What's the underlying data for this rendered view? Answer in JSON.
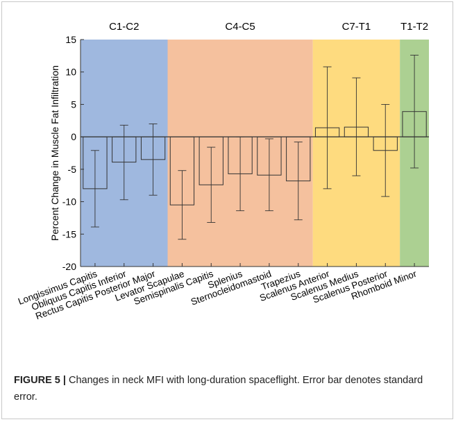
{
  "chart_data": {
    "type": "bar",
    "ylabel": "Percent Change in Muscle Fat Infiltration",
    "xlabel": "",
    "ylim": [
      -20,
      15
    ],
    "yticks": [
      15,
      10,
      5,
      0,
      -5,
      -10,
      -15,
      -20
    ],
    "grid": false,
    "categories": [
      "Longissimus Capitis",
      "Obliquus Capitis Inferior",
      "Rectus Capitis Posterior Major",
      "Levator Scapulae",
      "Semispinalis Capitis",
      "Splenius",
      "Sternocleidomastoid",
      "Trapezius",
      "Scalenus Anterior",
      "Scalenus Medius",
      "Scalenus Posterior",
      "Rhomboid Minor"
    ],
    "values": [
      -8.0,
      -3.9,
      -3.5,
      -10.5,
      -7.4,
      -5.7,
      -5.9,
      -6.8,
      1.4,
      1.5,
      -2.1,
      3.9
    ],
    "error_low": [
      -13.9,
      -9.7,
      -9.0,
      -15.8,
      -13.2,
      -11.4,
      -11.4,
      -12.8,
      -8.0,
      -6.0,
      -9.2,
      -4.8
    ],
    "error_high": [
      -2.1,
      1.8,
      2.0,
      -5.2,
      -1.6,
      0.0,
      -0.3,
      -0.8,
      10.8,
      9.1,
      5.0,
      12.6
    ],
    "regions": [
      {
        "label": "C1-C2",
        "from": 0,
        "to": 2,
        "color": "#9fb8df"
      },
      {
        "label": "C4-C5",
        "from": 3,
        "to": 7,
        "color": "#f5c19e"
      },
      {
        "label": "C7-T1",
        "from": 8,
        "to": 10,
        "color": "#fedb7f"
      },
      {
        "label": "T1-T2",
        "from": 11,
        "to": 11,
        "color": "#acd092"
      }
    ]
  },
  "caption": {
    "lead": "FIGURE 5 |",
    "text": " Changes in neck MFI with long-duration spaceflight. Error bar denotes standard error."
  }
}
